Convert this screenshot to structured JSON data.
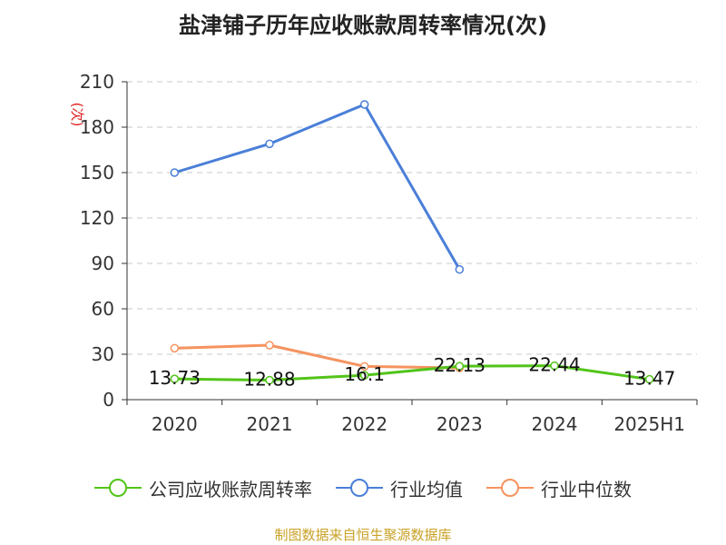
{
  "chart_data": {
    "type": "line",
    "title": "盐津铺子历年应收账款周转率情况(次)",
    "ylabel": "(次)",
    "categories": [
      "2020",
      "2021",
      "2022",
      "2023",
      "2024",
      "2025H1"
    ],
    "y_ticks": [
      0,
      30,
      60,
      90,
      120,
      150,
      180,
      210
    ],
    "ylim": [
      0,
      210
    ],
    "grid": true,
    "legend_position": "bottom",
    "series": [
      {
        "name": "公司应收账款周转率",
        "color": "#52c41a",
        "values": [
          13.73,
          12.88,
          16.1,
          22.13,
          22.44,
          13.47
        ],
        "labels": [
          "13.73",
          "12.88",
          "16.1",
          "22.13",
          "22.44",
          "13.47"
        ]
      },
      {
        "name": "行业均值",
        "color": "#4a7fd8",
        "values": [
          150,
          169,
          195,
          86,
          null,
          null
        ]
      },
      {
        "name": "行业中位数",
        "color": "#f5935f",
        "values": [
          34,
          36,
          22,
          21,
          null,
          null
        ]
      }
    ]
  },
  "source": "制图数据来自恒生聚源数据库"
}
